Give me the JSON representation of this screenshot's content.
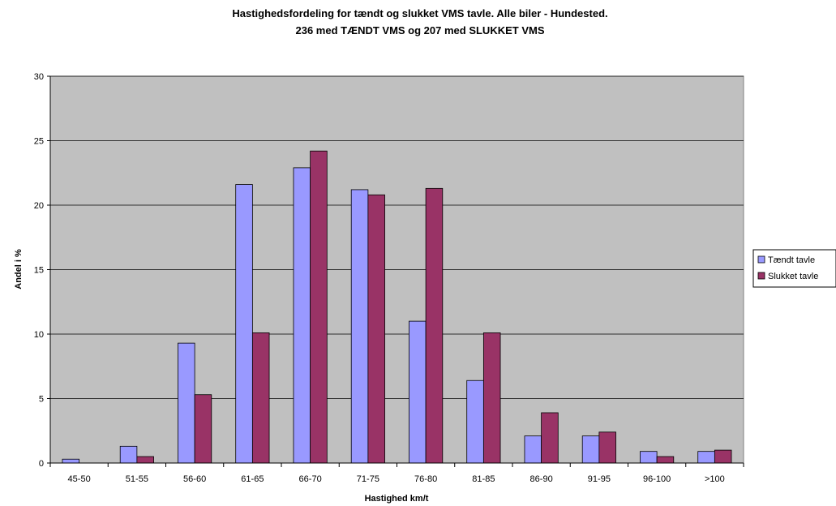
{
  "chart_data": {
    "type": "bar",
    "title": "Hastighedsfordeling for tændt og slukket VMS tavle. Alle biler - Hundested.",
    "subtitle": "236 med TÆNDT VMS og 207 med SLUKKET VMS",
    "xlabel": "Hastighed km/t",
    "ylabel": "Andel i %",
    "ylim": [
      0,
      30
    ],
    "yticks": [
      0,
      5,
      10,
      15,
      20,
      25,
      30
    ],
    "grid": true,
    "legend_position": "right",
    "categories": [
      "45-50",
      "51-55",
      "56-60",
      "61-65",
      "66-70",
      "71-75",
      "76-80",
      "81-85",
      "86-90",
      "91-95",
      "96-100",
      ">100"
    ],
    "series": [
      {
        "name": "Tændt tavle",
        "color": "#9999ff",
        "values": [
          0.3,
          1.3,
          9.3,
          21.6,
          22.9,
          21.2,
          11.0,
          6.4,
          2.1,
          2.1,
          0.9,
          0.9
        ]
      },
      {
        "name": "Slukket tavle",
        "color": "#993366",
        "values": [
          0.0,
          0.5,
          5.3,
          10.1,
          24.2,
          20.8,
          21.3,
          10.1,
          3.9,
          2.4,
          0.5,
          1.0
        ]
      }
    ],
    "plot_background": "#c0c0c0"
  }
}
